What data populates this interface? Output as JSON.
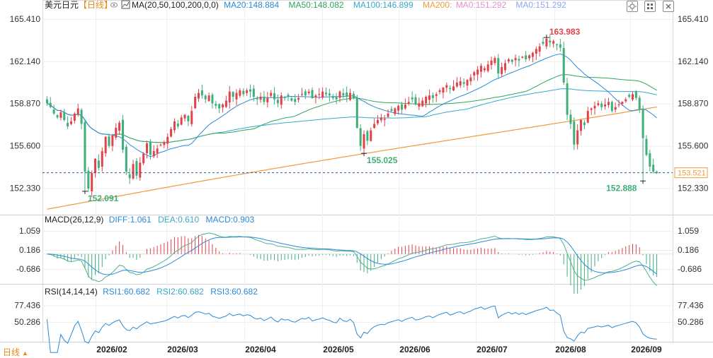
{
  "header": {
    "symbol": "美元日元",
    "period_tag": "【日线】",
    "ma_params": "MA(20,50,100,200,0,0)",
    "ma_values": [
      {
        "text": "MA20:148.884",
        "color": "#2a8ad8"
      },
      {
        "text": "MA50:148.082",
        "color": "#2fa55c"
      },
      {
        "text": "MA100:146.899",
        "color": "#38a8c8"
      },
      {
        "text": "MA200:",
        "color": "#f09a3c"
      },
      {
        "text": "MA0:151.292",
        "color": "#e58fd0"
      },
      {
        "text": "MA0:151.292",
        "color": "#8fa6f0"
      }
    ]
  },
  "macd_header": {
    "title": "MACD(26,12,9)",
    "diff": "DIFF:1.061",
    "dea": "DEA:0.610",
    "macd": "MACD:0.903"
  },
  "rsi_header": {
    "title": "RSI(14,14,14)",
    "rsi1": "RSI1:60.682",
    "rsi2": "RSI2:60.682",
    "rsi3": "RSI3:60.682"
  },
  "period_button": {
    "label": "日线",
    "caret": "▲"
  },
  "colors": {
    "up": "#e2434b",
    "down": "#3fae7a",
    "ma20": "#2a8ad8",
    "ma50": "#2fa55c",
    "ma100": "#38a8c8",
    "ma200": "#f09a3c",
    "diff": "#4fb08c",
    "dea": "#2a8ad8",
    "rsi": "#2a8ad8",
    "last_price": "#f09a3c"
  },
  "chart_data": [
    {
      "type": "candlestick",
      "name": "price",
      "x_tick_labels": [
        "2026/02",
        "2026/03",
        "2026/04",
        "2026/05",
        "2026/06",
        "2026/07",
        "2026/08",
        "2026/09"
      ],
      "y_tick_labels": [
        "165.410",
        "162.140",
        "158.870",
        "155.600",
        "152.330"
      ],
      "ylim": [
        150.5,
        165.9
      ],
      "last_price": "153.521",
      "annotations": [
        {
          "text": "152.091",
          "bar": 11,
          "value": 152.091,
          "kind": "low"
        },
        {
          "text": "155.025",
          "bar": 92,
          "value": 155.025,
          "kind": "low"
        },
        {
          "text": "163.983",
          "bar": 145,
          "value": 163.983,
          "kind": "high"
        },
        {
          "text": "152.888",
          "bar": 173,
          "value": 152.888,
          "kind": "low"
        }
      ],
      "closes": [
        158.9,
        158.6,
        158.1,
        157.8,
        158.2,
        157.6,
        157.1,
        157.5,
        158.1,
        158.5,
        157.3,
        153.6,
        152.3,
        153.5,
        154.6,
        153.9,
        155.2,
        156.3,
        155.6,
        156.4,
        157.0,
        157.4,
        155.3,
        153.6,
        153.1,
        154.2,
        153.3,
        154.3,
        155.0,
        155.8,
        154.9,
        155.2,
        155.4,
        155.7,
        155.9,
        156.3,
        156.9,
        157.5,
        157.1,
        157.8,
        158.0,
        157.5,
        158.3,
        159.4,
        159.7,
        159.5,
        159.2,
        159.5,
        158.9,
        158.7,
        158.5,
        158.8,
        159.1,
        159.8,
        159.4,
        159.7,
        159.9,
        159.6,
        159.9,
        159.8,
        159.4,
        159.2,
        159.4,
        159.0,
        159.3,
        159.7,
        159.2,
        158.9,
        159.5,
        159.3,
        159.4,
        159.1,
        159.0,
        159.3,
        159.6,
        159.5,
        159.8,
        159.3,
        159.5,
        159.6,
        159.8,
        159.6,
        159.5,
        159.3,
        159.2,
        159.8,
        159.5,
        159.4,
        159.7,
        159.3,
        157.0,
        155.6,
        156.5,
        156.0,
        156.8,
        157.3,
        157.6,
        157.8,
        157.7,
        158.1,
        158.3,
        158.5,
        158.7,
        158.4,
        158.8,
        159.0,
        159.2,
        158.8,
        158.9,
        159.1,
        159.4,
        159.5,
        159.3,
        159.6,
        159.9,
        160.1,
        160.3,
        160.0,
        160.2,
        160.5,
        160.6,
        160.4,
        160.7,
        160.9,
        161.3,
        161.5,
        161.8,
        161.6,
        161.9,
        162.2,
        162.4,
        161.2,
        161.7,
        162.0,
        162.3,
        162.1,
        162.4,
        162.2,
        162.5,
        162.3,
        162.6,
        162.8,
        163.1,
        163.3,
        163.5,
        163.9,
        163.6,
        163.7,
        163.4,
        163.2,
        160.5,
        158.0,
        157.3,
        155.7,
        156.8,
        157.6,
        157.2,
        158.3,
        158.5,
        158.7,
        158.9,
        158.6,
        158.8,
        159.0,
        158.3,
        158.6,
        158.8,
        159.0,
        159.2,
        159.4,
        159.6,
        159.3,
        158.4,
        156.2,
        154.9,
        154.0,
        153.6,
        153.5
      ]
    },
    {
      "type": "bar+line",
      "name": "macd",
      "y_tick_labels": [
        "1.059",
        "0.186",
        "-0.686"
      ],
      "ylim": [
        -1.3,
        1.35
      ],
      "series": [
        {
          "name": "DIFF"
        },
        {
          "name": "DEA"
        },
        {
          "name": "MACD"
        }
      ]
    },
    {
      "type": "line",
      "name": "rsi",
      "y_tick_labels": [
        "77.436",
        "50.286"
      ],
      "ylim": [
        20,
        92
      ]
    }
  ]
}
